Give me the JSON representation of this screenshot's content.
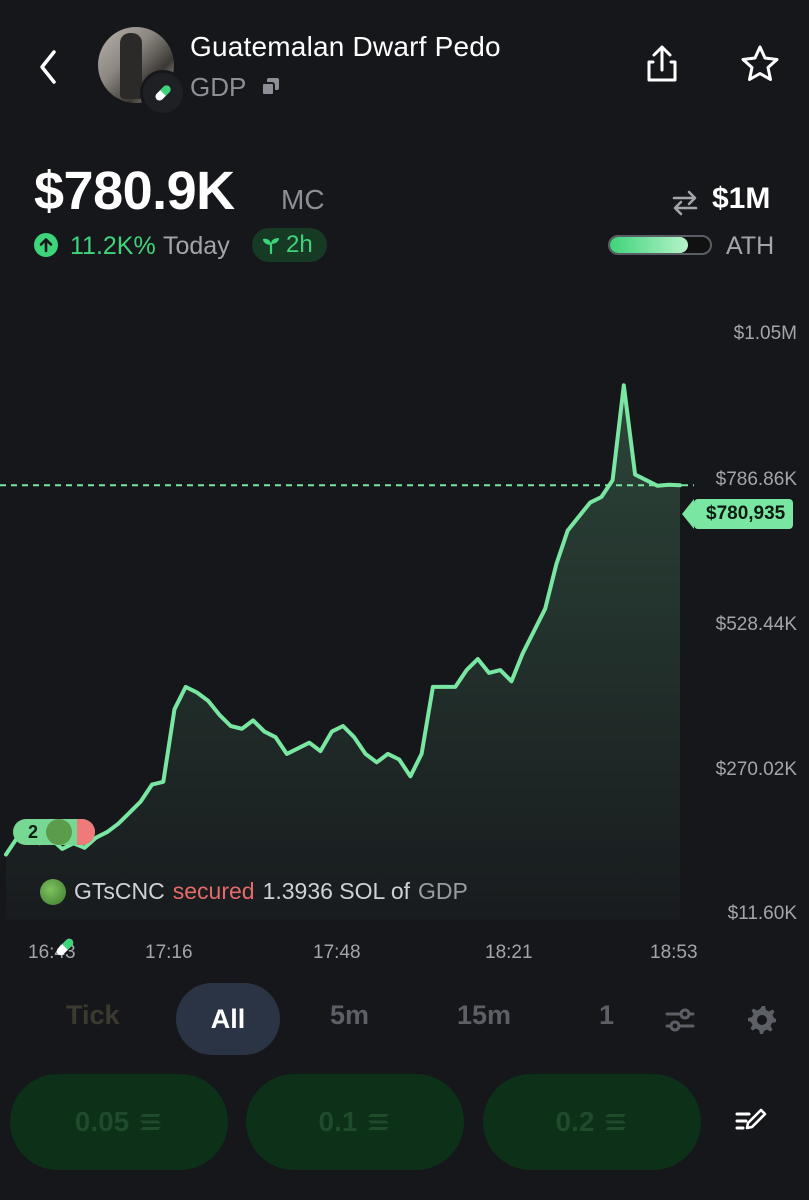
{
  "token": {
    "name": "Guatemalan Dwarf Pedo",
    "ticker": "GDP"
  },
  "market": {
    "mc_value": "$780.9K",
    "mc_label": "MC",
    "change_pct": "11.2K%",
    "change_period": "Today",
    "age": "2h",
    "ath_value": "$1M",
    "ath_label": "ATH",
    "ath_progress": 0.78
  },
  "chart_data": {
    "type": "line",
    "y_axis_labels": [
      "$1.05M",
      "$786.86K",
      "$528.44K",
      "$270.02K",
      "$11.60K"
    ],
    "x_axis_labels": [
      "16:43",
      "17:16",
      "17:48",
      "18:21",
      "18:53"
    ],
    "ylim": [
      11600,
      1050000
    ],
    "current_price_label": "$780,935",
    "current_value": 780935,
    "series_color": "#79e6a2",
    "x": [
      0,
      2,
      4,
      6,
      8,
      10,
      12,
      14,
      16,
      18,
      20,
      22,
      24,
      26,
      28,
      30,
      32,
      34,
      36,
      38,
      40,
      42,
      44,
      46,
      48,
      50,
      52,
      54,
      56,
      58,
      60,
      62,
      64,
      66,
      68,
      70,
      72,
      74,
      76,
      78,
      80,
      82,
      84,
      86,
      88,
      90,
      92,
      94,
      96,
      98,
      100,
      102,
      104,
      106,
      108,
      110,
      112,
      114,
      116,
      118,
      120
    ],
    "values": [
      120000,
      150000,
      155000,
      140000,
      148000,
      130000,
      140000,
      132000,
      150000,
      160000,
      175000,
      195000,
      215000,
      245000,
      250000,
      380000,
      420000,
      410000,
      395000,
      370000,
      350000,
      345000,
      360000,
      340000,
      330000,
      300000,
      310000,
      320000,
      305000,
      340000,
      350000,
      330000,
      300000,
      285000,
      300000,
      290000,
      260000,
      300000,
      420000,
      420000,
      420000,
      450000,
      470000,
      445000,
      450000,
      430000,
      480000,
      520000,
      560000,
      640000,
      700000,
      725000,
      750000,
      760000,
      790000,
      960000,
      800000,
      790000,
      780000,
      782000,
      780935
    ]
  },
  "trade_marker": {
    "count": "2"
  },
  "trade_note": {
    "user": "GTsCNC",
    "action": "secured",
    "amount": "1.3936 SOL of",
    "token": "GDP"
  },
  "timeframes": {
    "tick": "Tick",
    "all": "All",
    "m5": "5m",
    "m15": "15m",
    "one": "1"
  },
  "quick_buy": [
    "0.05",
    "0.1",
    "0.2"
  ],
  "colors": {
    "accent_green": "#3ed47a",
    "line_green": "#79e6a2",
    "sell_red": "#e46a6a",
    "background": "#16171b"
  },
  "icons": {
    "back": "chevron-left-icon",
    "share": "share-icon",
    "star": "star-icon",
    "copy": "copy-icon",
    "swap": "swap-icon",
    "filters": "sliders-icon",
    "settings": "gear-icon",
    "edit": "edit-icon",
    "sol": "solana-icon"
  }
}
